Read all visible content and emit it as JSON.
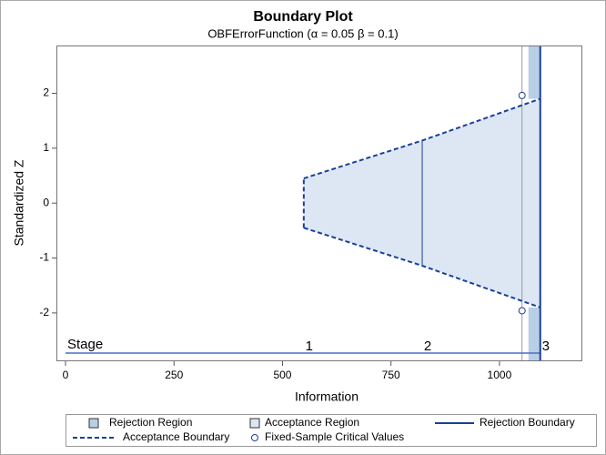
{
  "chart_data": {
    "type": "boundary",
    "title": "Boundary Plot",
    "subtitle": "OBFErrorFunction (α = 0.05  β = 0.1)",
    "xlabel": "Information",
    "ylabel": "Standardized Z",
    "stage_label": "Stage",
    "stages": [
      "1",
      "2",
      "3"
    ],
    "information": [
      549,
      822,
      1094
    ],
    "upper": [
      0.45,
      1.14,
      1.9
    ],
    "lower": [
      -0.45,
      -1.14,
      -1.9
    ],
    "fixed_sample": {
      "information": 1052,
      "values": [
        1.96,
        -1.96
      ]
    },
    "xlim": [
      -21,
      1191
    ],
    "ylim": [
      -2.88,
      2.87
    ],
    "xticks": [
      0,
      250,
      500,
      750,
      1000
    ],
    "yticks": [
      -2,
      -1,
      0,
      1,
      2
    ],
    "legend": [
      {
        "name": "Rejection Region",
        "color": "#b9cfe6"
      },
      {
        "name": "Acceptance Region",
        "color": "#dde7f3"
      },
      {
        "name": "Rejection Boundary",
        "color": "#1a3f9a"
      },
      {
        "name": "Acceptance Boundary",
        "color": "#1a3f9a"
      },
      {
        "name": "Fixed-Sample Critical Values",
        "color": "#1a3f9a"
      }
    ]
  }
}
